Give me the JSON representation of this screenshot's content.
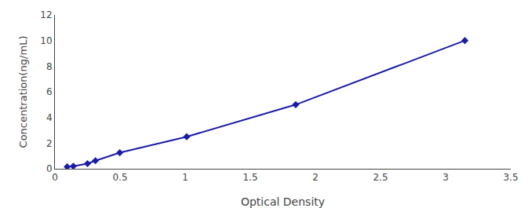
{
  "chart_data": {
    "type": "line",
    "x": [
      0.094,
      0.141,
      0.25,
      0.311,
      0.498,
      1.012,
      1.849,
      3.148
    ],
    "values": [
      0.156,
      0.2,
      0.4,
      0.625,
      1.25,
      2.5,
      5.0,
      10.0
    ],
    "xlabel": "Optical Density",
    "ylabel": "Concentration(ng/mL)",
    "xlim": [
      0,
      3.5
    ],
    "ylim": [
      0,
      12
    ],
    "xticks": [
      0,
      0.5,
      1,
      1.5,
      2,
      2.5,
      3,
      3.5
    ],
    "yticks": [
      0,
      2,
      4,
      6,
      8,
      10,
      12
    ],
    "color": "#1a1aaa",
    "marker": "diamond",
    "line_style": "solid",
    "grid": false
  }
}
